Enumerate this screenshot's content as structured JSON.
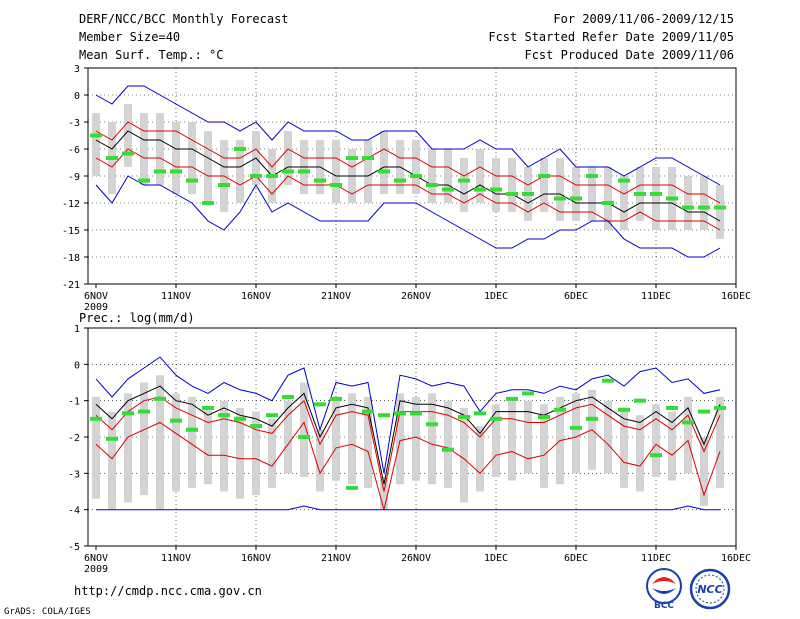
{
  "header": {
    "title": "DERF/NCC/BCC Monthly Forecast",
    "member_size": "Member Size=40",
    "variable": "Mean Surf. Temp.: °C",
    "period": "For 2009/11/06-2009/12/15",
    "refer_date": "Fcst Started Refer Date 2009/11/05",
    "produced_date": "Fcst Produced Date 2009/11/06"
  },
  "footer": {
    "url": "http://cmdp.ncc.cma.gov.cn",
    "credit": "GrADS: COLA/IGES",
    "logo_bcc": "BCC",
    "logo_ncc": "NCC"
  },
  "colors": {
    "envelope": "#0000cc",
    "percentile": "#dd0000",
    "median": "#000000",
    "bar": "#d3d3d3",
    "ensemble_mean": "#33dd33"
  },
  "chart_data": [
    {
      "type": "line",
      "title": "Mean Surf. Temp.: °C",
      "x_ticks": [
        "6NOV",
        "11NOV",
        "16NOV",
        "21NOV",
        "26NOV",
        "1DEC",
        "6DEC",
        "11DEC",
        "16DEC"
      ],
      "x_year_label": "2009",
      "x_range_days": [
        0,
        40
      ],
      "ylim": [
        -21,
        3
      ],
      "y_ticks": [
        3,
        0,
        -3,
        -6,
        -9,
        -12,
        -15,
        -18,
        -21
      ],
      "series": [
        {
          "name": "max",
          "color": "#0000cc",
          "values": [
            0,
            -1,
            1,
            1,
            0,
            -1,
            -2,
            -3,
            -3,
            -4,
            -3,
            -5,
            -3,
            -4,
            -4,
            -4,
            -5,
            -5,
            -4,
            -4,
            -4,
            -6,
            -6,
            -6,
            -5,
            -6,
            -6,
            -8,
            -7,
            -6,
            -8,
            -8,
            -8,
            -9,
            -8,
            -7,
            -7,
            -8,
            -9,
            -10
          ]
        },
        {
          "name": "p90",
          "color": "#dd0000",
          "values": [
            -4,
            -5,
            -3,
            -4,
            -4,
            -4,
            -5,
            -6,
            -7,
            -7,
            -6,
            -8,
            -6,
            -7,
            -7,
            -7,
            -8,
            -7,
            -6,
            -7,
            -7,
            -8,
            -8,
            -9,
            -8,
            -9,
            -9,
            -10,
            -9,
            -9,
            -10,
            -10,
            -10,
            -11,
            -10,
            -10,
            -10,
            -11,
            -11,
            -12
          ]
        },
        {
          "name": "median",
          "color": "#000000",
          "values": [
            -5,
            -6,
            -4,
            -5,
            -5,
            -6,
            -6,
            -7,
            -8,
            -8,
            -7,
            -9,
            -8,
            -8,
            -8,
            -9,
            -9,
            -9,
            -8,
            -8,
            -9,
            -10,
            -10,
            -11,
            -10,
            -11,
            -11,
            -12,
            -11,
            -11,
            -12,
            -12,
            -12,
            -13,
            -12,
            -12,
            -12,
            -13,
            -13,
            -14
          ]
        },
        {
          "name": "p10",
          "color": "#dd0000",
          "values": [
            -7,
            -8,
            -6,
            -7,
            -7,
            -8,
            -8,
            -9,
            -9,
            -10,
            -9,
            -11,
            -9,
            -10,
            -10,
            -10,
            -11,
            -10,
            -10,
            -10,
            -10,
            -11,
            -11,
            -12,
            -11,
            -12,
            -12,
            -13,
            -12,
            -13,
            -13,
            -13,
            -14,
            -14,
            -13,
            -14,
            -14,
            -14,
            -14,
            -15
          ]
        },
        {
          "name": "min",
          "color": "#0000cc",
          "values": [
            -10,
            -12,
            -9,
            -10,
            -10,
            -11,
            -12,
            -14,
            -15,
            -13,
            -10,
            -13,
            -12,
            -13,
            -14,
            -14,
            -14,
            -14,
            -12,
            -12,
            -12,
            -13,
            -14,
            -15,
            -16,
            -17,
            -17,
            -16,
            -16,
            -15,
            -15,
            -14,
            -14,
            -16,
            -17,
            -17,
            -17,
            -18,
            -18,
            -17
          ]
        }
      ],
      "bars": {
        "name": "member range",
        "low": [
          -9,
          -11,
          -8,
          -10,
          -10,
          -11,
          -11,
          -12,
          -13,
          -12,
          -10,
          -12,
          -10,
          -11,
          -11,
          -12,
          -12,
          -12,
          -11,
          -11,
          -11,
          -12,
          -12,
          -13,
          -12,
          -13,
          -13,
          -14,
          -13,
          -14,
          -14,
          -14,
          -15,
          -15,
          -14,
          -15,
          -15,
          -15,
          -15,
          -16
        ],
        "high": [
          -2,
          -3,
          -1,
          -2,
          -2,
          -3,
          -3,
          -4,
          -5,
          -5,
          -4,
          -6,
          -4,
          -5,
          -5,
          -5,
          -6,
          -5,
          -4,
          -5,
          -5,
          -6,
          -6,
          -7,
          -6,
          -7,
          -7,
          -8,
          -7,
          -7,
          -8,
          -8,
          -8,
          -9,
          -8,
          -8,
          -8,
          -9,
          -9,
          -10
        ]
      },
      "ensemble_mean": [
        -4.5,
        -7,
        -6.5,
        -9.5,
        -8.5,
        -8.5,
        -9.5,
        -12,
        -10,
        -6,
        -9,
        -9,
        -8.5,
        -8.5,
        -9.5,
        -10,
        -7,
        -7,
        -8.5,
        -9.5,
        -9,
        -10,
        -10.5,
        -9.5,
        -10.5,
        -10.5,
        -11,
        -11,
        -9,
        -11.5,
        -11.5,
        -9,
        -12,
        -9.5,
        -11,
        -11,
        -11.5,
        -12.5,
        -12.5,
        -12.5
      ]
    },
    {
      "type": "line",
      "title": "Prec.: log(mm/d)",
      "x_ticks": [
        "6NOV",
        "11NOV",
        "16NOV",
        "21NOV",
        "26NOV",
        "1DEC",
        "6DEC",
        "11DEC",
        "16DEC"
      ],
      "x_year_label": "2009",
      "x_range_days": [
        0,
        40
      ],
      "ylim": [
        -5,
        1
      ],
      "y_ticks": [
        1,
        0,
        -1,
        -2,
        -3,
        -4,
        -5
      ],
      "series": [
        {
          "name": "max",
          "color": "#0000cc",
          "values": [
            -0.4,
            -0.9,
            -0.4,
            -0.1,
            0.2,
            -0.3,
            -0.6,
            -0.8,
            -0.5,
            -0.7,
            -0.8,
            -1.0,
            -0.3,
            -0.1,
            -1.8,
            -0.5,
            -0.6,
            -0.5,
            -3.0,
            -0.3,
            -0.4,
            -0.6,
            -0.5,
            -0.6,
            -1.3,
            -0.8,
            -0.7,
            -0.7,
            -0.8,
            -0.6,
            -0.7,
            -0.4,
            -0.3,
            -0.6,
            -0.2,
            -0.1,
            -0.5,
            -0.4,
            -0.8,
            -0.7
          ]
        },
        {
          "name": "p90",
          "color": "#000000",
          "values": [
            -1.1,
            -1.5,
            -1.0,
            -0.8,
            -0.6,
            -1.0,
            -1.1,
            -1.4,
            -1.2,
            -1.4,
            -1.5,
            -1.7,
            -1.2,
            -0.8,
            -2.0,
            -1.2,
            -1.1,
            -1.2,
            -3.3,
            -1.0,
            -1.1,
            -1.1,
            -1.2,
            -1.4,
            -1.9,
            -1.3,
            -1.3,
            -1.3,
            -1.4,
            -1.2,
            -1.0,
            -0.9,
            -1.2,
            -1.5,
            -1.6,
            -1.3,
            -1.6,
            -1.2,
            -2.2,
            -1.1
          ]
        },
        {
          "name": "p75",
          "color": "#dd0000",
          "values": [
            -1.4,
            -1.8,
            -1.3,
            -1.0,
            -0.9,
            -1.2,
            -1.4,
            -1.6,
            -1.5,
            -1.6,
            -1.8,
            -1.9,
            -1.4,
            -1.0,
            -2.2,
            -1.4,
            -1.3,
            -1.4,
            -3.5,
            -1.3,
            -1.3,
            -1.3,
            -1.4,
            -1.6,
            -2.0,
            -1.5,
            -1.5,
            -1.6,
            -1.6,
            -1.4,
            -1.2,
            -1.1,
            -1.4,
            -1.7,
            -1.8,
            -1.5,
            -1.8,
            -1.4,
            -2.4,
            -1.4
          ]
        },
        {
          "name": "p25",
          "color": "#dd0000",
          "values": [
            -2.2,
            -2.6,
            -2.0,
            -1.8,
            -1.6,
            -1.9,
            -2.2,
            -2.5,
            -2.5,
            -2.6,
            -2.6,
            -2.8,
            -2.2,
            -1.6,
            -3.0,
            -2.3,
            -2.2,
            -2.4,
            -4.0,
            -2.1,
            -2.0,
            -2.2,
            -2.3,
            -2.6,
            -3.0,
            -2.5,
            -2.4,
            -2.6,
            -2.5,
            -2.1,
            -2.0,
            -1.8,
            -2.2,
            -2.7,
            -2.8,
            -2.2,
            -2.5,
            -2.1,
            -3.6,
            -2.4
          ]
        },
        {
          "name": "min",
          "color": "#0000cc",
          "values": [
            -4,
            -4,
            -4,
            -4,
            -4,
            -4,
            -4,
            -4,
            -4,
            -4,
            -4,
            -4,
            -4,
            -3.9,
            -4,
            -4,
            -4,
            -4,
            -4,
            -4,
            -4,
            -4,
            -4,
            -4,
            -4,
            -4,
            -4,
            -4,
            -4,
            -4,
            -4,
            -4,
            -4,
            -4,
            -4,
            -4,
            -4,
            -3.9,
            -4,
            -4
          ]
        }
      ],
      "bars": {
        "name": "member range",
        "low": [
          -3.7,
          -4.0,
          -3.8,
          -3.6,
          -4.0,
          -3.5,
          -3.4,
          -3.3,
          -3.5,
          -3.7,
          -3.6,
          -3.4,
          -3.0,
          -3.1,
          -3.5,
          -3.2,
          -3.3,
          -3.4,
          -4.0,
          -3.3,
          -3.2,
          -3.3,
          -3.4,
          -3.8,
          -3.5,
          -3.1,
          -3.2,
          -3.0,
          -3.4,
          -3.3,
          -3.0,
          -2.9,
          -3.0,
          -3.4,
          -3.5,
          -3.1,
          -3.2,
          -3.0,
          -3.9,
          -3.4
        ],
        "high": [
          -0.9,
          -1.3,
          -0.8,
          -0.5,
          -0.3,
          -0.8,
          -0.9,
          -1.2,
          -1.0,
          -1.2,
          -1.3,
          -1.5,
          -1.0,
          -0.5,
          -1.8,
          -0.9,
          -0.8,
          -0.9,
          -3.1,
          -0.8,
          -0.9,
          -0.8,
          -1.0,
          -1.2,
          -1.7,
          -1.1,
          -1.0,
          -1.0,
          -1.1,
          -0.9,
          -0.8,
          -0.7,
          -1.0,
          -1.3,
          -1.4,
          -1.1,
          -1.3,
          -0.9,
          -2.0,
          -0.9
        ]
      },
      "ensemble_mean": [
        -1.5,
        -2.05,
        -1.35,
        -1.3,
        -0.95,
        -1.55,
        -1.8,
        -1.2,
        -1.4,
        -1.5,
        -1.7,
        -1.4,
        -0.9,
        -2.0,
        -1.1,
        -0.95,
        -3.4,
        -1.3,
        -1.4,
        -1.35,
        -1.35,
        -1.65,
        -2.35,
        -1.45,
        -1.35,
        -1.5,
        -0.95,
        -0.8,
        -1.45,
        -1.25,
        -1.75,
        -1.5,
        -0.45,
        -1.25,
        -1.0,
        -2.5,
        -1.2,
        -1.6,
        -1.3,
        -1.2
      ]
    }
  ]
}
